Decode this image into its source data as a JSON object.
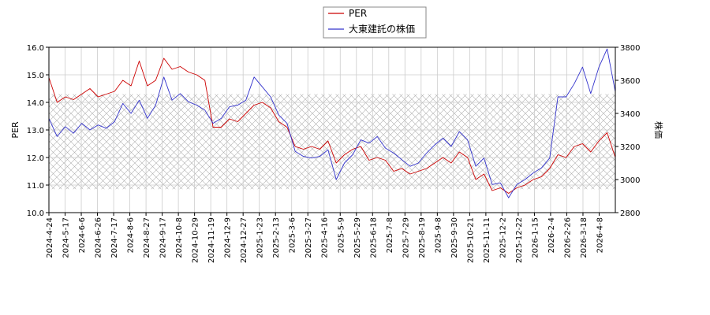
{
  "chart_data": {
    "type": "line",
    "legend": {
      "placement": "top-center",
      "entries": [
        {
          "label": "PER",
          "color": "#cc0000"
        },
        {
          "label": "大東建託の株価",
          "color": "#3333cc"
        }
      ]
    },
    "ylabel_left": "PER",
    "ylabel_right": "株価",
    "ylim_left": [
      10.0,
      16.0
    ],
    "yticks_left": [
      "10.0",
      "11.0",
      "12.0",
      "13.0",
      "14.0",
      "15.0",
      "16.0"
    ],
    "ylim_right": [
      2800,
      3800
    ],
    "yticks_right": [
      "2800",
      "3000",
      "3200",
      "3400",
      "3600",
      "3800"
    ],
    "grid": true,
    "shaded_band_left": [
      10.85,
      14.3
    ],
    "xticks": [
      "2024-4-24",
      "2024-5-17",
      "2024-6-6",
      "2024-6-26",
      "2024-7-17",
      "2024-8-6",
      "2024-8-27",
      "2024-9-17",
      "2024-10-8",
      "2024-10-29",
      "2024-11-19",
      "2024-12-9",
      "2024-12-27",
      "2025-1-23",
      "2025-2-13",
      "2025-3-6",
      "2025-3-27",
      "2025-4-16",
      "2025-5-9",
      "2025-5-29",
      "2025-6-18",
      "2025-7-8",
      "2025-7-29",
      "2025-8-19",
      "2025-9-8",
      "2025-9-30",
      "2025-10-21",
      "2025-11-11",
      "2025-12-2",
      "2025-12-22",
      "2026-1-15",
      "2026-2-4",
      "2026-2-26",
      "2026-3-18",
      "2026-4-8"
    ],
    "series": [
      {
        "name": "PER",
        "axis": "left",
        "color": "#cc0000",
        "values": [
          14.9,
          14.0,
          14.2,
          14.1,
          14.3,
          14.5,
          14.2,
          14.3,
          14.4,
          14.8,
          14.6,
          15.5,
          14.6,
          14.8,
          15.6,
          15.2,
          15.3,
          15.1,
          15.0,
          14.8,
          13.1,
          13.1,
          13.4,
          13.3,
          13.6,
          13.9,
          14.0,
          13.8,
          13.3,
          13.1,
          12.4,
          12.3,
          12.4,
          12.3,
          12.6,
          11.8,
          12.1,
          12.3,
          12.4,
          11.9,
          12.0,
          11.9,
          11.5,
          11.6,
          11.4,
          11.5,
          11.6,
          11.8,
          12.0,
          11.8,
          12.2,
          12.0,
          11.2,
          11.4,
          10.8,
          10.9,
          10.7,
          10.9,
          11.0,
          11.2,
          11.3,
          11.6,
          12.1,
          12.0,
          12.4,
          12.5,
          12.2,
          12.6,
          12.9,
          12.0
        ]
      },
      {
        "name": "大東建託の株価",
        "axis": "right",
        "color": "#3333cc",
        "values": [
          3370,
          3260,
          3320,
          3280,
          3340,
          3300,
          3330,
          3310,
          3350,
          3460,
          3400,
          3480,
          3370,
          3450,
          3620,
          3480,
          3520,
          3470,
          3450,
          3420,
          3340,
          3370,
          3440,
          3450,
          3480,
          3620,
          3560,
          3500,
          3390,
          3340,
          3170,
          3140,
          3130,
          3140,
          3180,
          3000,
          3100,
          3150,
          3240,
          3220,
          3260,
          3190,
          3160,
          3120,
          3080,
          3100,
          3160,
          3210,
          3250,
          3200,
          3290,
          3240,
          3080,
          3130,
          2970,
          2980,
          2890,
          2970,
          3000,
          3040,
          3070,
          3130,
          3500,
          3500,
          3580,
          3680,
          3520,
          3680,
          3790,
          3530
        ]
      }
    ]
  }
}
